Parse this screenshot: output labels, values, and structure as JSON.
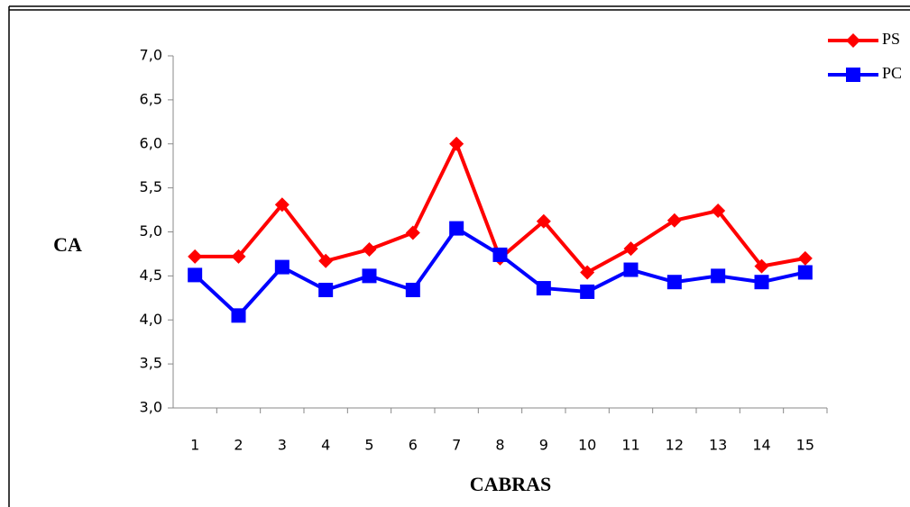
{
  "chart_data": {
    "type": "line",
    "categories": [
      "1",
      "2",
      "3",
      "4",
      "5",
      "6",
      "7",
      "8",
      "9",
      "10",
      "11",
      "12",
      "13",
      "14",
      "15"
    ],
    "series": [
      {
        "name": "PS",
        "color": "#ff0000",
        "values": [
          4.72,
          4.72,
          5.31,
          4.67,
          4.8,
          4.99,
          6.0,
          4.7,
          5.12,
          4.54,
          4.81,
          5.13,
          5.24,
          4.61,
          4.7
        ]
      },
      {
        "name": "PC",
        "color": "#0000ff",
        "values": [
          4.51,
          4.05,
          4.6,
          4.34,
          4.5,
          4.34,
          5.04,
          4.74,
          4.36,
          4.32,
          4.57,
          4.43,
          4.5,
          4.43,
          4.54
        ]
      }
    ],
    "ylim": [
      3,
      7
    ],
    "yticks": [
      {
        "value": 3,
        "label": "3,0"
      },
      {
        "value": 3.5,
        "label": "3,5"
      },
      {
        "value": 4,
        "label": "4,0"
      },
      {
        "value": 4.5,
        "label": "4,5"
      },
      {
        "value": 5,
        "label": "5,0"
      },
      {
        "value": 5.5,
        "label": "5,5"
      },
      {
        "value": 6,
        "label": "6,0"
      },
      {
        "value": 6.5,
        "label": "6,5"
      },
      {
        "value": 7,
        "label": "7,0"
      }
    ],
    "ylabel": "CA",
    "xlabel": "CABRAS"
  }
}
